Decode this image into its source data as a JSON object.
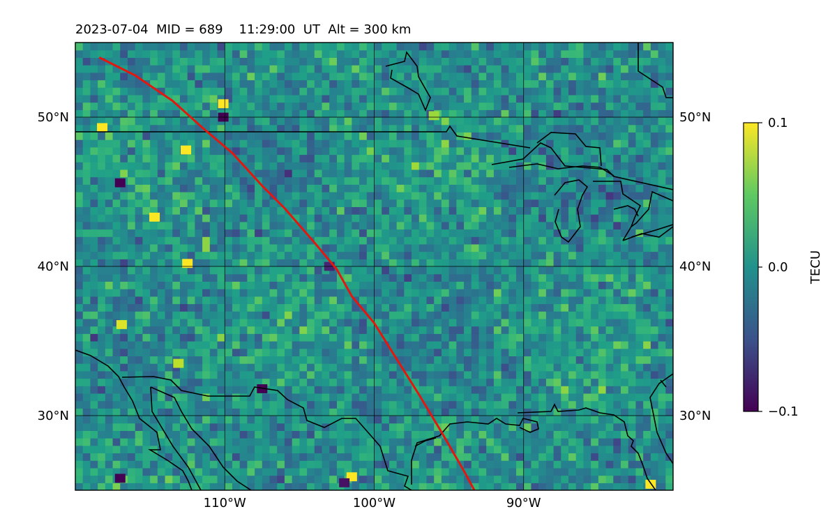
{
  "title": "2023-07-04  MID = 689    11:29:00  UT  Alt = 300 km",
  "map": {
    "x_ticks": [
      {
        "value": -110,
        "label": "110°W"
      },
      {
        "value": -100,
        "label": "100°W"
      },
      {
        "value": -90,
        "label": "90°W"
      }
    ],
    "y_ticks": [
      {
        "value": 30,
        "label": "30°N"
      },
      {
        "value": 40,
        "label": "40°N"
      },
      {
        "value": 50,
        "label": "50°N"
      }
    ],
    "lon_range": [
      -120,
      -80
    ],
    "lat_range": [
      25,
      55
    ],
    "grid": true
  },
  "colorbar": {
    "label": "TECU",
    "min": -0.1,
    "max": 0.1,
    "ticks": [
      {
        "value": 0.1,
        "label": "0.1"
      },
      {
        "value": 0.0,
        "label": "0.0"
      },
      {
        "value": -0.1,
        "label": "−0.1"
      }
    ],
    "colormap": "viridis"
  },
  "chart_data": {
    "type": "heatmap",
    "title": "2023-07-04  MID = 689    11:29:00  UT  Alt = 300 km",
    "xlabel": "",
    "ylabel": "",
    "x_range": [
      -120,
      -80
    ],
    "y_range": [
      25,
      55
    ],
    "value_label": "TECU",
    "value_range": [
      -0.1,
      0.1
    ],
    "background_value": 0.0,
    "grid": true,
    "anomalies": [
      {
        "lon": -118.2,
        "lat": 49.3,
        "value": 0.1
      },
      {
        "lon": -112.6,
        "lat": 47.8,
        "value": 0.1
      },
      {
        "lon": -110.1,
        "lat": 50.9,
        "value": 0.1
      },
      {
        "lon": -110.1,
        "lat": 50.0,
        "value": -0.1
      },
      {
        "lon": -117.0,
        "lat": 45.6,
        "value": -0.1
      },
      {
        "lon": -114.7,
        "lat": 43.3,
        "value": 0.1
      },
      {
        "lon": -112.5,
        "lat": 40.2,
        "value": 0.1
      },
      {
        "lon": -116.9,
        "lat": 36.1,
        "value": 0.09
      },
      {
        "lon": -107.5,
        "lat": 31.8,
        "value": -0.1
      },
      {
        "lon": -117.0,
        "lat": 25.8,
        "value": -0.1
      },
      {
        "lon": -101.5,
        "lat": 25.9,
        "value": 0.1
      },
      {
        "lon": -96.0,
        "lat": 50.1,
        "value": 0.07
      },
      {
        "lon": -81.5,
        "lat": 25.4,
        "value": 0.1
      },
      {
        "lon": -103.0,
        "lat": 40.0,
        "value": -0.08
      },
      {
        "lon": -113.1,
        "lat": 33.5,
        "value": 0.08
      },
      {
        "lon": -102.0,
        "lat": 25.5,
        "value": -0.09
      }
    ],
    "track": {
      "name": "",
      "color": "#e3170d",
      "lon": [
        -118.4,
        -116.0,
        -113.5,
        -111.5,
        -109.5,
        -107.5,
        -106.0,
        -104.0,
        -102.5,
        -101.5,
        -100.0,
        -98.5,
        -97.0,
        -95.5,
        -94.0,
        -93.3
      ],
      "lat": [
        54.0,
        52.8,
        51.1,
        49.3,
        47.6,
        45.4,
        43.9,
        41.6,
        39.8,
        38.0,
        36.2,
        33.8,
        31.4,
        28.9,
        26.3,
        25.0
      ]
    }
  }
}
